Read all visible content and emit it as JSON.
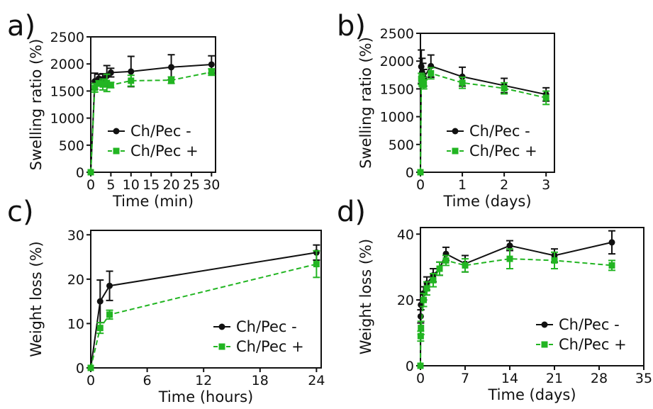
{
  "colors": {
    "series_minus": "#111111",
    "series_plus": "#22b522",
    "axis": "#111111"
  },
  "chart_data": [
    {
      "panel": "a)",
      "type": "line",
      "xlabel": "Time (min)",
      "ylabel": "Swelling ratio (%)",
      "xlim": [
        0,
        31
      ],
      "ylim": [
        0,
        2500
      ],
      "xticks": [
        0,
        5,
        10,
        15,
        20,
        25,
        30
      ],
      "yticks": [
        0,
        500,
        1000,
        1500,
        2000,
        2500
      ],
      "legend_position": "bottom-right",
      "series": [
        {
          "name": "Ch/Pec -",
          "x": [
            0,
            1,
            2,
            3,
            4,
            5,
            10,
            20,
            30
          ],
          "y": [
            0,
            1680,
            1730,
            1720,
            1780,
            1840,
            1860,
            1940,
            1990
          ],
          "err": [
            0,
            150,
            80,
            100,
            190,
            80,
            280,
            230,
            160
          ]
        },
        {
          "name": "Ch/Pec +",
          "x": [
            0,
            1,
            2,
            3,
            4,
            5,
            10,
            20,
            30
          ],
          "y": [
            0,
            1560,
            1640,
            1620,
            1650,
            1610,
            1690,
            1700,
            1850
          ],
          "err": [
            0,
            80,
            50,
            100,
            160,
            50,
            100,
            60,
            60
          ]
        }
      ]
    },
    {
      "panel": "b)",
      "type": "line",
      "xlabel": "Time (days)",
      "ylabel": "Swelling ratio (%)",
      "xlim": [
        0,
        3.2
      ],
      "ylim": [
        0,
        2500
      ],
      "xticks": [
        0,
        1,
        2,
        3
      ],
      "yticks": [
        0,
        500,
        1000,
        1500,
        2000,
        2500
      ],
      "legend_position": "bottom-right",
      "series": [
        {
          "name": "Ch/Pec -",
          "x": [
            0,
            0.02,
            0.04,
            0.06,
            0.08,
            0.25,
            1,
            2,
            3
          ],
          "y": [
            0,
            1900,
            1800,
            1760,
            1700,
            1910,
            1720,
            1560,
            1400
          ],
          "err": [
            0,
            300,
            250,
            200,
            150,
            200,
            170,
            130,
            120
          ]
        },
        {
          "name": "Ch/Pec +",
          "x": [
            0,
            0.02,
            0.04,
            0.06,
            0.08,
            0.25,
            1,
            2,
            3
          ],
          "y": [
            0,
            1680,
            1650,
            1620,
            1580,
            1780,
            1610,
            1510,
            1340
          ],
          "err": [
            0,
            100,
            100,
            90,
            80,
            100,
            100,
            100,
            120
          ]
        }
      ]
    },
    {
      "panel": "c)",
      "type": "line",
      "xlabel": "Time (hours)",
      "ylabel": "Weight loss (%)",
      "xlim": [
        0,
        24.5
      ],
      "ylim": [
        0,
        31
      ],
      "xticks": [
        0,
        6,
        12,
        18,
        24
      ],
      "yticks": [
        0,
        10,
        20,
        30
      ],
      "legend_position": "bottom-right",
      "series": [
        {
          "name": "Ch/Pec -",
          "x": [
            0,
            1,
            2,
            24
          ],
          "y": [
            0,
            15,
            18.5,
            26
          ],
          "err": [
            0,
            4.8,
            3.3,
            1.7
          ]
        },
        {
          "name": "Ch/Pec +",
          "x": [
            0,
            1,
            2,
            24
          ],
          "y": [
            0,
            9,
            12,
            23.4
          ],
          "err": [
            0,
            1.2,
            1.0,
            3.0
          ]
        }
      ]
    },
    {
      "panel": "d)",
      "type": "line",
      "xlabel": "Time (days)",
      "ylabel": "Weight loss (%)",
      "xlim": [
        0,
        35
      ],
      "ylim": [
        0,
        42
      ],
      "xticks": [
        0,
        7,
        14,
        21,
        28,
        35
      ],
      "yticks": [
        0,
        20,
        40
      ],
      "legend_position": "bottom-right",
      "series": [
        {
          "name": "Ch/Pec -",
          "x": [
            0,
            0.04,
            0.08,
            0.5,
            1,
            2,
            3,
            4,
            7,
            14,
            21,
            30
          ],
          "y": [
            0,
            15,
            18.5,
            22,
            25,
            27.5,
            29.5,
            34,
            31,
            36.5,
            33.5,
            37.5
          ],
          "err": [
            0,
            2,
            1.5,
            2,
            2,
            2,
            2,
            2,
            2.5,
            1.5,
            2,
            3.5
          ]
        },
        {
          "name": "Ch/Pec +",
          "x": [
            0,
            0.04,
            0.08,
            0.5,
            1,
            2,
            3,
            4,
            7,
            14,
            21,
            30
          ],
          "y": [
            0,
            9,
            11.5,
            20,
            23.5,
            26,
            29.5,
            32,
            30.5,
            32.5,
            32,
            30.5
          ],
          "err": [
            0,
            1.5,
            2,
            2,
            2,
            2,
            2,
            1.5,
            2,
            3,
            2.5,
            1.5
          ]
        }
      ]
    }
  ]
}
